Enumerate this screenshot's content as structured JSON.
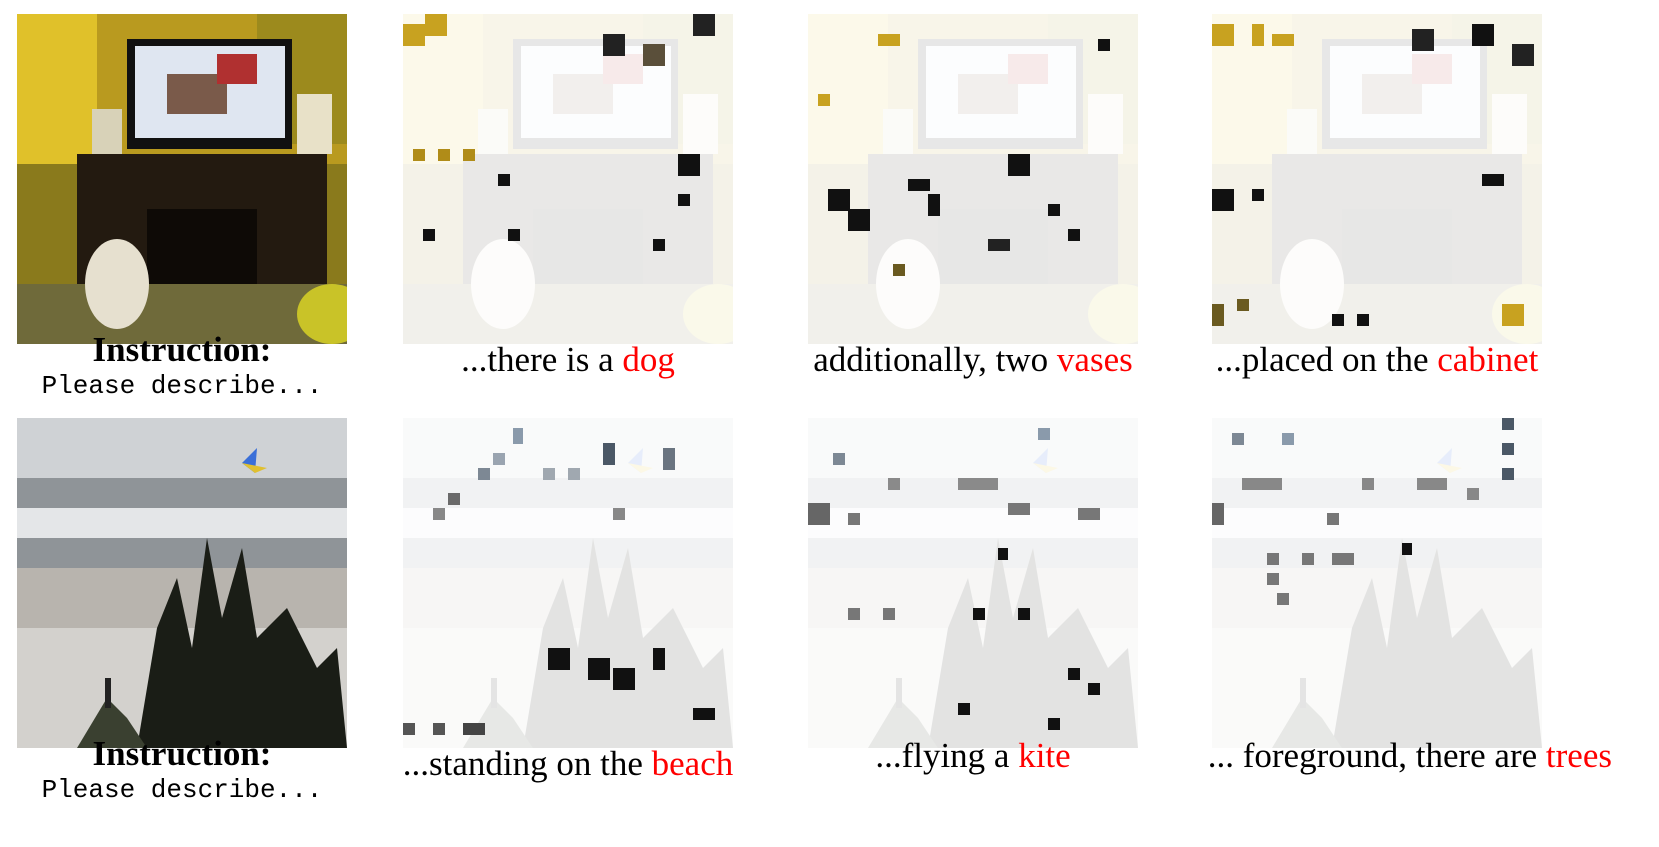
{
  "rows": [
    {
      "instruction": {
        "title": "Instruction:",
        "text": "Please describe..."
      },
      "captions": [
        {
          "prefix": "...there is a ",
          "highlight": "dog"
        },
        {
          "prefix": "additionally, two ",
          "highlight": "vases"
        },
        {
          "prefix": "...placed on the ",
          "highlight": "cabinet"
        }
      ]
    },
    {
      "instruction": {
        "title": "Instruction:",
        "text": "Please describe..."
      },
      "captions": [
        {
          "prefix": "...standing on the ",
          "highlight": "beach"
        },
        {
          "prefix": "...flying a ",
          "highlight": "kite"
        },
        {
          "prefix": "... foreground, there are ",
          "highlight": "trees"
        }
      ]
    }
  ],
  "colors": {
    "highlight": "#ff0000"
  }
}
